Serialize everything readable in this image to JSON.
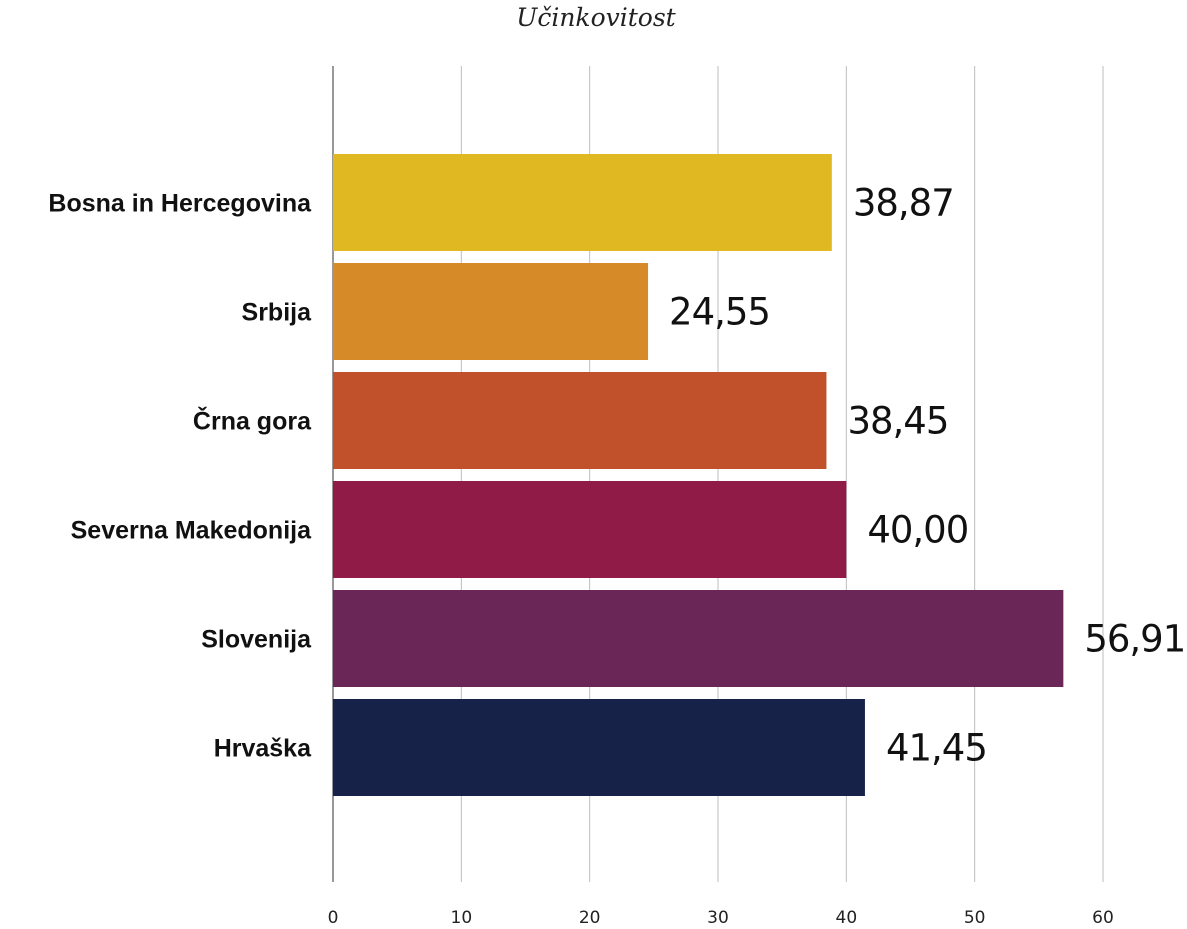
{
  "chart_data": {
    "type": "bar",
    "orientation": "horizontal",
    "title": "Učinkovitost",
    "categories": [
      "Bosna in Hercegovina",
      "Srbija",
      "Črna gora",
      "Severna Makedonija",
      "Slovenija",
      "Hrvaška"
    ],
    "values": [
      38.87,
      24.55,
      38.45,
      40.0,
      56.91,
      41.45
    ],
    "value_labels": [
      "38,87",
      "24,55",
      "38,45",
      "40,00",
      "56,91",
      "41,45"
    ],
    "colors": [
      "#E0B922",
      "#D68B28",
      "#C0512B",
      "#911B47",
      "#6A2656",
      "#162248"
    ],
    "xlim": [
      0,
      60
    ],
    "x_ticks": [
      0,
      10,
      20,
      30,
      40,
      50,
      60
    ],
    "grid": true,
    "legend": "none"
  }
}
